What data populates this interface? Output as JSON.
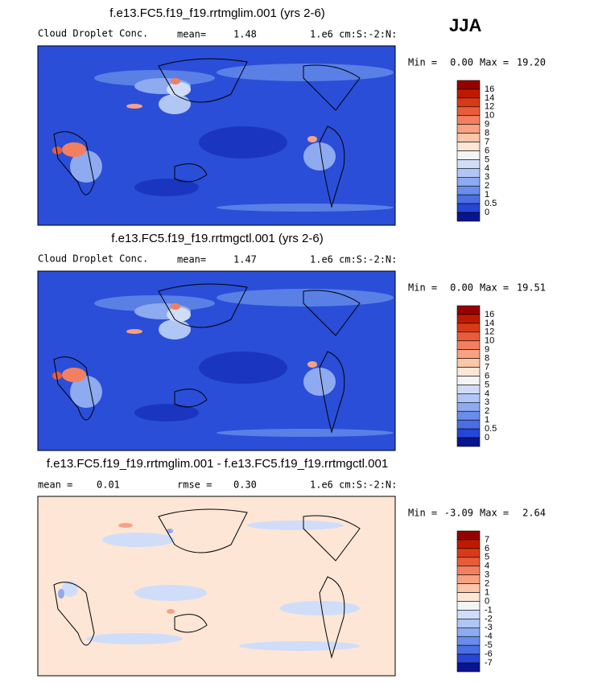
{
  "season": "JJA",
  "panels": [
    {
      "title": "f.e13.FC5.f19_f19.rrtmglim.001 (yrs 2-6)",
      "variable": "Cloud Droplet Conc.",
      "stat_label": "mean=",
      "stat": "1.48",
      "units": "1.e6 cm:S:-2:N:",
      "min_label": "Min =",
      "min": "0.00",
      "max_label": "Max =",
      "max": "19.20",
      "colorbar": {
        "levels": [
          "16",
          "14",
          "12",
          "10",
          "9",
          "8",
          "7",
          "6",
          "5",
          "4",
          "3",
          "2",
          "1",
          "0.5",
          "0"
        ],
        "colors": [
          "#960000",
          "#bf1a00",
          "#d83a18",
          "#e85c3a",
          "#f28060",
          "#f8a282",
          "#fcc6aa",
          "#fde6d6",
          "#f4f4f4",
          "#d0ddf8",
          "#b0c6f4",
          "#8eaaf0",
          "#6a8cea",
          "#4a6ee4",
          "#2646d8",
          "#0a1490"
        ]
      }
    },
    {
      "title": "f.e13.FC5.f19_f19.rrtmgctl.001 (yrs 2-6)",
      "variable": "Cloud Droplet Conc.",
      "stat_label": "mean=",
      "stat": "1.47",
      "units": "1.e6 cm:S:-2:N:",
      "min_label": "Min =",
      "min": "0.00",
      "max_label": "Max =",
      "max": "19.51",
      "colorbar": {
        "levels": [
          "16",
          "14",
          "12",
          "10",
          "9",
          "8",
          "7",
          "6",
          "5",
          "4",
          "3",
          "2",
          "1",
          "0.5",
          "0"
        ],
        "colors": [
          "#960000",
          "#bf1a00",
          "#d83a18",
          "#e85c3a",
          "#f28060",
          "#f8a282",
          "#fcc6aa",
          "#fde6d6",
          "#f4f4f4",
          "#d0ddf8",
          "#b0c6f4",
          "#8eaaf0",
          "#6a8cea",
          "#4a6ee4",
          "#2646d8",
          "#0a1490"
        ]
      }
    },
    {
      "title": "f.e13.FC5.f19_f19.rrtmglim.001 - f.e13.FC5.f19_f19.rrtmgctl.001",
      "mean_label": "mean =",
      "mean": "0.01",
      "stat_label": "rmse =",
      "stat": "0.30",
      "units": "1.e6 cm:S:-2:N:",
      "min_label": "Min =",
      "min": "-3.09",
      "max_label": "Max =",
      "max": "2.64",
      "colorbar": {
        "levels": [
          "7",
          "6",
          "5",
          "4",
          "3",
          "2",
          "1",
          "0",
          "-1",
          "-2",
          "-3",
          "-4",
          "-5",
          "-6",
          "-7"
        ],
        "colors": [
          "#960000",
          "#bf1a00",
          "#d83a18",
          "#e85c3a",
          "#f28060",
          "#f8a282",
          "#fcc6aa",
          "#fde6d6",
          "#f4f4f4",
          "#d0ddf8",
          "#b0c6f4",
          "#8eaaf0",
          "#6a8cea",
          "#4a6ee4",
          "#2646d8",
          "#0a1490"
        ]
      }
    }
  ]
}
